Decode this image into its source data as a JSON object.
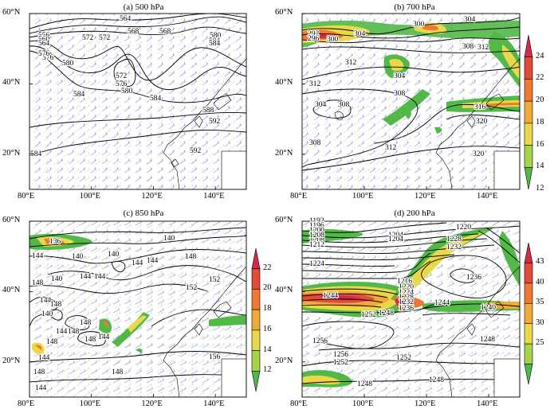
{
  "panels": [
    {
      "id": "a",
      "title": "(a) 500 hPa",
      "y_ticks": [
        "60°N",
        "40°N",
        "20°N"
      ],
      "x_ticks": [
        "80°E",
        "100°E",
        "120°E",
        "140°E"
      ],
      "contour_labels": [
        "564",
        "568",
        "572",
        "576",
        "580",
        "584",
        "588",
        "592",
        "556",
        "560",
        "564",
        "576",
        "580",
        "572",
        "576",
        "580",
        "584",
        "584",
        "584",
        "592",
        "584",
        "568",
        "572"
      ],
      "colorbar": null
    },
    {
      "id": "b",
      "title": "(b) 700 hPa",
      "y_ticks": [
        "60°N",
        "40°N",
        "20°N"
      ],
      "x_ticks": [
        "80°E",
        "100°E",
        "120°E",
        "140°E"
      ],
      "contour_labels": [
        "292",
        "296",
        "300",
        "304",
        "300",
        "304",
        "308",
        "312",
        "308",
        "312",
        "304",
        "308",
        "304",
        "308",
        "312",
        "316",
        "320",
        "320",
        "308",
        "312"
      ],
      "colorbar": {
        "ticks": [
          "24",
          "22",
          "20",
          "18",
          "16",
          "14",
          "12"
        ],
        "colors": [
          "#d42a4a",
          "#e24a3a",
          "#ee7a32",
          "#f0aa38",
          "#e8d84a",
          "#a8d448",
          "#52b848"
        ]
      }
    },
    {
      "id": "c",
      "title": "(c) 850 hPa",
      "y_ticks": [
        "60°N",
        "40°N",
        "20°N"
      ],
      "x_ticks": [
        "80°E",
        "100°E",
        "120°E",
        "140°E"
      ],
      "contour_labels": [
        "136",
        "140",
        "144",
        "140",
        "144",
        "144",
        "148",
        "152",
        "144",
        "148",
        "140",
        "144",
        "148",
        "148",
        "140",
        "144",
        "144",
        "148",
        "148",
        "144",
        "152",
        "156",
        "148",
        "144",
        "140",
        "144",
        "148",
        "148"
      ],
      "colorbar": {
        "ticks": [
          "22",
          "20",
          "18",
          "16",
          "14",
          "12"
        ],
        "colors": [
          "#d42a4a",
          "#e24a3a",
          "#ee7a32",
          "#f0aa38",
          "#e8d84a",
          "#a8d448",
          "#52b848"
        ]
      }
    },
    {
      "id": "d",
      "title": "(d) 200 hPa",
      "y_ticks": [
        "60°N",
        "40°N",
        "20°N"
      ],
      "x_ticks": [
        "80°E",
        "100°E",
        "120°E",
        "140°E"
      ],
      "contour_labels": [
        "1192",
        "1196",
        "1200",
        "1204",
        "1208",
        "1212",
        "1216",
        "1220",
        "1224",
        "1228",
        "1232",
        "1236",
        "1240",
        "1244",
        "1248",
        "1252",
        "1256",
        "1204",
        "1208",
        "1220",
        "1224",
        "1228",
        "1232",
        "1236",
        "1244",
        "1248",
        "1252",
        "1256",
        "1252",
        "1248",
        "1248"
      ],
      "colorbar": {
        "ticks": [
          "43",
          "40",
          "35",
          "30",
          "25"
        ],
        "colors": [
          "#d42a4a",
          "#e24a3a",
          "#ee7a32",
          "#f0aa38",
          "#e8d84a",
          "#a8d448",
          "#52b848"
        ]
      }
    }
  ]
}
